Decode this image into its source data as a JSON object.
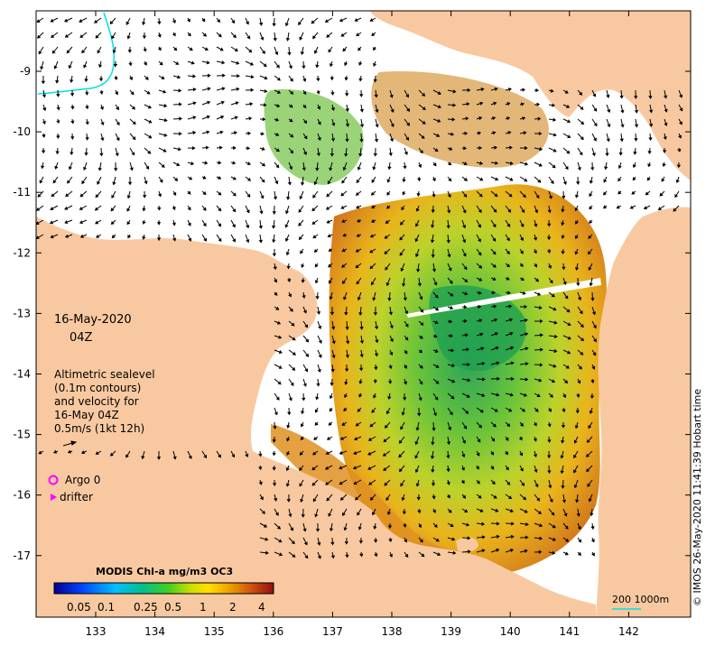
{
  "map": {
    "date": "16-May-2020",
    "time": "04Z",
    "legend_lines": [
      "Altimetric sealevel",
      "(0.1m contours)",
      "and velocity for",
      "16-May 04Z",
      "0.5m/s (1kt 12h)"
    ],
    "argo_label": "Argo 0",
    "drifter_label": "drifter",
    "colorbar_title": "MODIS Chl-a mg/m3 OC3",
    "colorbar_ticks": [
      "0.05",
      "0.1",
      "0.25",
      "0.5",
      "1",
      "2",
      "4"
    ],
    "scale_label": "200  1000m",
    "credit": "© IMOS 26-May-2020 11:41:39 Hobart time",
    "x_ticks": [
      "133",
      "134",
      "135",
      "136",
      "137",
      "138",
      "139",
      "140",
      "141",
      "142"
    ],
    "y_ticks": [
      "-9",
      "-10",
      "-11",
      "-12",
      "-13",
      "-14",
      "-15",
      "-16",
      "-17"
    ],
    "colors": {
      "land": "#f8c9a0",
      "ocean": "#ffffff",
      "argo": "#ff00ff",
      "drifter": "#ff00ff",
      "isobath": "#00e0e0"
    }
  }
}
